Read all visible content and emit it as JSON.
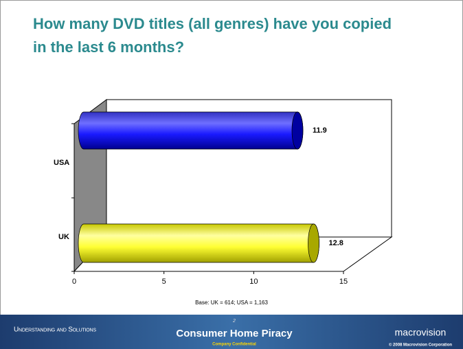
{
  "chart_data": {
    "type": "bar",
    "orientation": "horizontal",
    "title": "How many DVD titles (all genres) have you copied in the last 6 months?",
    "categories": [
      "USA",
      "UK"
    ],
    "values": [
      11.9,
      12.8
    ],
    "colors": [
      "#1a1aff",
      "#ffff33"
    ],
    "xlim": [
      0,
      15
    ],
    "xticks": [
      0,
      5,
      10,
      15
    ],
    "note": "Base: UK = 614; USA = 1,163"
  },
  "footer": {
    "left": "Understanding and Solutions",
    "page": "2",
    "center": "Consumer Home Piracy",
    "confidential": "Company Confidential",
    "brand": "macrovision",
    "copyright": "© 2008 Macrovision Corporation"
  }
}
